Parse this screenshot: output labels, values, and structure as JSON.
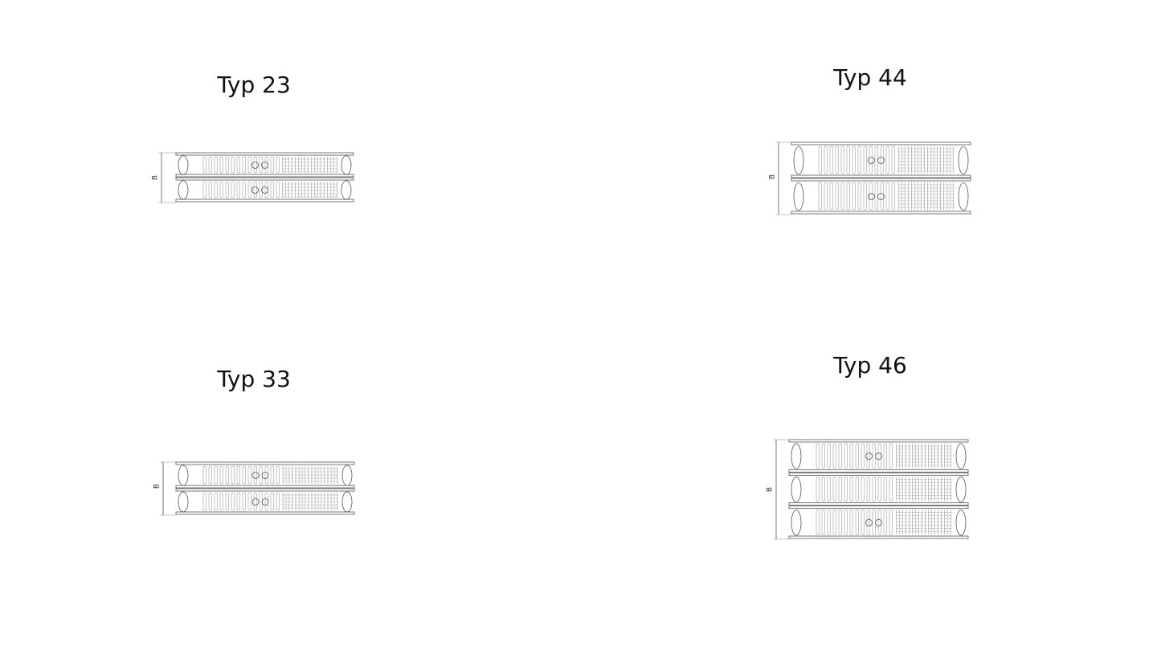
{
  "panels": [
    {
      "title": "Typ 23",
      "dimension_label": "B"
    },
    {
      "title": "Typ 44",
      "dimension_label": "B"
    },
    {
      "title": "Typ 33",
      "dimension_label": "B"
    },
    {
      "title": "Typ 46",
      "dimension_label": "B"
    }
  ]
}
